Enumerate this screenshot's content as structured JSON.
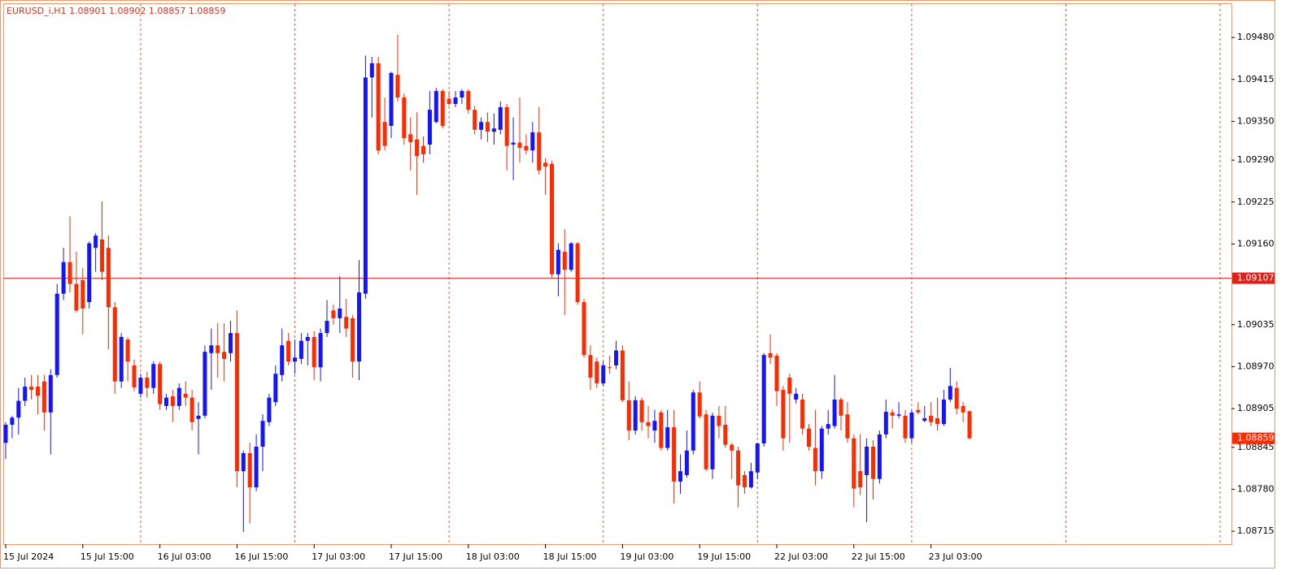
{
  "chart_data": {
    "type": "candlestick",
    "title": "EURUSD_i,H1  1.08901 1.08902 1.08857 1.08859",
    "categories": [
      "15 Jul 2024",
      null,
      null,
      null,
      null,
      null,
      null,
      null,
      null,
      null,
      null,
      null,
      "15 Jul 15:00",
      null,
      null,
      null,
      null,
      null,
      null,
      null,
      null,
      null,
      null,
      null,
      "16 Jul 03:00",
      null,
      null,
      null,
      null,
      null,
      null,
      null,
      null,
      null,
      null,
      null,
      "16 Jul 15:00",
      null,
      null,
      null,
      null,
      null,
      null,
      null,
      null,
      null,
      null,
      null,
      "17 Jul 03:00",
      null,
      null,
      null,
      null,
      null,
      null,
      null,
      null,
      null,
      null,
      null,
      "17 Jul 15:00",
      null,
      null,
      null,
      null,
      null,
      null,
      null,
      null,
      null,
      null,
      null,
      "18 Jul 03:00",
      null,
      null,
      null,
      null,
      null,
      null,
      null,
      null,
      null,
      null,
      null,
      "18 Jul 15:00",
      null,
      null,
      null,
      null,
      null,
      null,
      null,
      null,
      null,
      null,
      null,
      "19 Jul 03:00",
      null,
      null,
      null,
      null,
      null,
      null,
      null,
      null,
      null,
      null,
      null,
      "19 Jul 15:00",
      null,
      null,
      null,
      null,
      null,
      null,
      null,
      null,
      null,
      null,
      null,
      "22 Jul 03:00",
      null,
      null,
      null,
      null,
      null,
      null,
      null,
      null,
      null,
      null,
      null,
      "22 Jul 15:00",
      null,
      null,
      null,
      null,
      null,
      null,
      null,
      null,
      null,
      null,
      null,
      "23 Jul 03:00",
      null,
      null,
      null,
      null,
      null,
      null
    ],
    "open": [
      1.08852,
      1.0888,
      1.08891,
      1.08917,
      1.08939,
      1.08939,
      1.08947,
      1.08899,
      1.08957,
      1.09083,
      1.09132,
      1.09098,
      1.09104,
      1.0907,
      1.09154,
      1.09167,
      1.09154,
      1.09062,
      1.08947,
      1.09012,
      1.08972,
      1.08928,
      1.08953,
      1.08937,
      1.08974,
      1.08909,
      1.08924,
      1.08909,
      1.08928,
      1.08922,
      1.08889,
      1.08894,
      1.08991,
      1.09003,
      1.08993,
      1.08991,
      1.09022,
      1.08808,
      1.08836,
      1.08783,
      1.08846,
      1.08884,
      1.08915,
      1.08957,
      1.0901,
      1.08978,
      1.08982,
      1.0901,
      1.09016,
      1.08969,
      1.09022,
      1.09057,
      1.09045,
      1.09047,
      1.09045,
      1.08978,
      1.09083,
      1.09418,
      1.0944,
      1.09349,
      1.09343,
      1.09422,
      1.09387,
      1.0933,
      1.09322,
      1.09312,
      1.09314,
      1.09349,
      1.09397,
      1.09385,
      1.09377,
      1.09387,
      1.09397,
      1.09368,
      1.09337,
      1.09349,
      1.09334,
      1.09337,
      1.09372,
      1.09314,
      1.09317,
      1.09312,
      1.09305,
      1.09333,
      1.09286,
      1.09284,
      1.09113,
      1.09148,
      1.0912,
      1.09161,
      1.0907,
      1.08988,
      1.08978,
      1.08944,
      1.08969,
      1.08972,
      1.08995,
      1.08918,
      1.08871,
      1.08918,
      1.08884,
      1.08871,
      1.08899,
      1.08844,
      1.08876,
      1.08792,
      1.08802,
      1.0884,
      1.0893,
      1.08896,
      1.08811,
      1.08894,
      1.0888,
      1.08849,
      1.0884,
      1.08802,
      1.08783,
      1.08806,
      1.08851,
      1.08991,
      1.08987,
      1.08934,
      1.08953,
      1.08919,
      1.08919,
      1.08874,
      1.08844,
      1.08808,
      1.08874,
      1.08878,
      1.08919,
      1.08896,
      1.08859,
      1.08808,
      1.08802,
      1.08846,
      1.08796,
      1.08865,
      1.08899,
      1.08894,
      1.08894,
      1.08859,
      1.08903,
      1.08886,
      1.08894,
      1.0889,
      1.08881,
      1.08919,
      1.08937,
      1.08909,
      1.08901
    ],
    "high": [
      1.08884,
      1.08894,
      1.08937,
      1.08953,
      1.08957,
      1.08957,
      1.08957,
      1.08966,
      1.09098,
      1.09154,
      1.09203,
      1.09148,
      1.09123,
      1.09164,
      1.09177,
      1.09226,
      1.09173,
      1.0907,
      1.09022,
      1.09016,
      1.08981,
      1.08959,
      1.08962,
      1.08978,
      1.08978,
      1.08928,
      1.08934,
      1.08944,
      1.08947,
      1.08934,
      1.08915,
      1.09003,
      1.09029,
      1.09037,
      1.09037,
      1.09041,
      1.09057,
      1.0884,
      1.08852,
      1.08865,
      1.08896,
      1.08928,
      1.08972,
      1.09029,
      1.09022,
      1.09012,
      1.09022,
      1.09022,
      1.09025,
      1.09029,
      1.09073,
      1.09066,
      1.0911,
      1.09075,
      1.0905,
      1.09135,
      1.09452,
      1.0945,
      1.0945,
      1.09387,
      1.09427,
      1.09484,
      1.09393,
      1.09356,
      1.09364,
      1.09327,
      1.09397,
      1.09402,
      1.094,
      1.09397,
      1.09397,
      1.094,
      1.094,
      1.09374,
      1.09356,
      1.09364,
      1.09362,
      1.09381,
      1.09377,
      1.09356,
      1.09387,
      1.0933,
      1.09349,
      1.09372,
      1.09293,
      1.09289,
      1.09161,
      1.09183,
      1.09163,
      1.09163,
      1.09075,
      1.09003,
      1.08984,
      1.08978,
      1.08987,
      1.0901,
      1.09003,
      1.08947,
      1.08924,
      1.08922,
      1.08909,
      1.08903,
      1.08903,
      1.08903,
      1.08903,
      1.08834,
      1.08871,
      1.08934,
      1.08947,
      1.08903,
      1.08899,
      1.08909,
      1.08909,
      1.08852,
      1.08846,
      1.08808,
      1.08821,
      1.08852,
      1.08991,
      1.0902,
      1.08991,
      1.0894,
      1.08959,
      1.08937,
      1.08928,
      1.08881,
      1.08903,
      1.08878,
      1.08903,
      1.08957,
      1.08922,
      1.08915,
      1.08865,
      1.08865,
      1.08859,
      1.08856,
      1.08871,
      1.08919,
      1.08904,
      1.08915,
      1.08903,
      1.08903,
      1.08915,
      1.08909,
      1.08915,
      1.08922,
      1.08934,
      1.08968,
      1.08947,
      1.08915,
      1.08902
    ],
    "low": [
      1.08827,
      1.08859,
      1.08865,
      1.08909,
      1.08919,
      1.08896,
      1.08871,
      1.08834,
      1.08953,
      1.09073,
      1.09085,
      1.09054,
      1.0902,
      1.0906,
      1.09117,
      1.09104,
      1.08997,
      1.08928,
      1.08937,
      1.08947,
      1.08932,
      1.08922,
      1.08922,
      1.08928,
      1.08903,
      1.08903,
      1.08884,
      1.08903,
      1.08909,
      1.08871,
      1.08834,
      1.0889,
      1.08934,
      1.08953,
      1.08947,
      1.08978,
      1.08783,
      1.08714,
      1.08727,
      1.08777,
      1.08808,
      1.08878,
      1.08909,
      1.08947,
      1.08972,
      1.08959,
      1.08974,
      1.08972,
      1.08949,
      1.08947,
      1.09016,
      1.09035,
      1.09022,
      1.09016,
      1.08953,
      1.08949,
      1.09075,
      1.09356,
      1.09299,
      1.09305,
      1.09324,
      1.09381,
      1.09314,
      1.09274,
      1.09236,
      1.09286,
      1.09299,
      1.09347,
      1.09339,
      1.09374,
      1.09372,
      1.09377,
      1.09362,
      1.0933,
      1.09322,
      1.09318,
      1.09314,
      1.0933,
      1.09274,
      1.09259,
      1.09286,
      1.09299,
      1.09286,
      1.09268,
      1.09236,
      1.09108,
      1.09079,
      1.0905,
      1.09117,
      1.09066,
      1.08984,
      1.08934,
      1.08937,
      1.0894,
      1.08959,
      1.08966,
      1.08915,
      1.08856,
      1.08865,
      1.08871,
      1.08859,
      1.08852,
      1.0884,
      1.0884,
      1.08758,
      1.08773,
      1.08798,
      1.08834,
      1.0889,
      1.08808,
      1.08796,
      1.08859,
      1.08844,
      1.08796,
      1.08752,
      1.08773,
      1.08781,
      1.08796,
      1.08846,
      1.08974,
      1.08909,
      1.0884,
      1.08852,
      1.08913,
      1.08865,
      1.0884,
      1.08786,
      1.08796,
      1.08865,
      1.08874,
      1.08871,
      1.08852,
      1.08752,
      1.08771,
      1.08729,
      1.08764,
      1.08789,
      1.08859,
      1.08874,
      1.0889,
      1.08852,
      1.08852,
      1.08896,
      1.08884,
      1.08878,
      1.08871,
      1.08878,
      1.08915,
      1.08896,
      1.08884,
      1.08857
    ],
    "close": [
      1.0888,
      1.08891,
      1.08917,
      1.08939,
      1.08934,
      1.08925,
      1.08899,
      1.08957,
      1.09083,
      1.09132,
      1.09098,
      1.09057,
      1.0906,
      1.09161,
      1.09173,
      1.09117,
      1.09062,
      1.08947,
      1.09016,
      1.08978,
      1.08938,
      1.08953,
      1.08937,
      1.08974,
      1.08912,
      1.08922,
      1.08909,
      1.08937,
      1.08922,
      1.08884,
      1.08894,
      1.08993,
      1.09003,
      1.08991,
      1.08982,
      1.09022,
      1.08808,
      1.08836,
      1.08783,
      1.08846,
      1.08886,
      1.08922,
      1.08959,
      1.09003,
      1.08978,
      1.08984,
      1.0901,
      1.09016,
      1.08969,
      1.09022,
      1.09041,
      1.09045,
      1.0906,
      1.09029,
      1.08978,
      1.09085,
      1.09418,
      1.0944,
      1.09305,
      1.09312,
      1.09425,
      1.09387,
      1.09324,
      1.09318,
      1.09296,
      1.09299,
      1.09368,
      1.09397,
      1.09343,
      1.09377,
      1.09387,
      1.09397,
      1.09368,
      1.09337,
      1.09349,
      1.09334,
      1.09339,
      1.09372,
      1.09312,
      1.09317,
      1.09309,
      1.09305,
      1.09333,
      1.09274,
      1.0928,
      1.09113,
      1.09151,
      1.0912,
      1.09161,
      1.0907,
      1.08988,
      1.08953,
      1.08944,
      1.08972,
      1.08968,
      1.08995,
      1.08918,
      1.08871,
      1.08918,
      1.08884,
      1.08878,
      1.08886,
      1.08844,
      1.08876,
      1.08792,
      1.08808,
      1.0884,
      1.0893,
      1.08893,
      1.08811,
      1.08894,
      1.08878,
      1.08849,
      1.0884,
      1.08786,
      1.08783,
      1.08808,
      1.08851,
      1.08988,
      1.08984,
      1.08932,
      1.08859,
      1.08928,
      1.08928,
      1.08874,
      1.08846,
      1.08808,
      1.08874,
      1.08881,
      1.08919,
      1.08894,
      1.08859,
      1.08781,
      1.08783,
      1.08846,
      1.08796,
      1.08865,
      1.089,
      1.08894,
      1.08896,
      1.08859,
      1.08899,
      1.08899,
      1.0889,
      1.08884,
      1.08881,
      1.08919,
      1.0894,
      1.08905,
      1.08899,
      1.08859
    ],
    "bull_color": "#1414ff",
    "bear_color": "#ff2a00",
    "ylim": [
      1.08695,
      1.09533
    ],
    "yticks": [
      {
        "value": 1.0948,
        "label": "1.09480"
      },
      {
        "value": 1.09415,
        "label": "1.09415"
      },
      {
        "value": 1.0935,
        "label": "1.09350"
      },
      {
        "value": 1.0929,
        "label": "1.09290"
      },
      {
        "value": 1.09225,
        "label": "1.09225"
      },
      {
        "value": 1.0916,
        "label": "1.09160"
      },
      {
        "value": 1.09035,
        "label": "1.09035"
      },
      {
        "value": 1.0897,
        "label": "1.08970"
      },
      {
        "value": 1.08905,
        "label": "1.08905"
      },
      {
        "value": 1.08845,
        "label": "1.08845"
      },
      {
        "value": 1.0878,
        "label": "1.08780"
      },
      {
        "value": 1.08715,
        "label": "1.08715"
      }
    ],
    "hline": {
      "value": 1.09107,
      "label": "1.09107"
    },
    "price_label": {
      "value": 1.08859,
      "label": "1.08859"
    }
  }
}
